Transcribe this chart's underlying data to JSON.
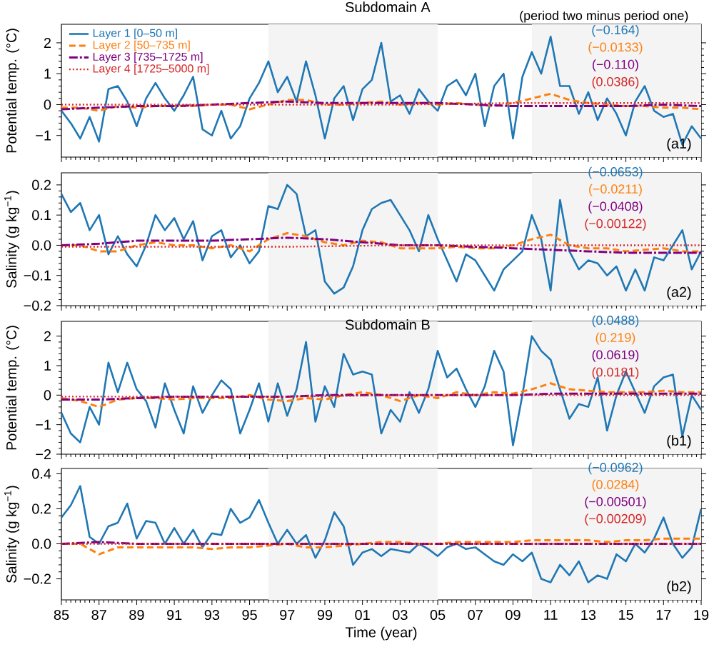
{
  "chart_data": [
    {
      "type": "line",
      "title": "Subdomain A",
      "ylabel": "Potential temp. (°C)",
      "legend": "top left",
      "tick_labels": "y",
      "xlim": [
        1985,
        2019
      ],
      "ylim": [
        -1.7,
        2.6
      ],
      "xticks": [
        {
          "value": 1985,
          "label": null
        },
        {
          "value": 1987,
          "label": null
        },
        {
          "value": 1989,
          "label": null
        },
        {
          "value": 1991,
          "label": null
        },
        {
          "value": 1993,
          "label": null
        },
        {
          "value": 1995,
          "label": null
        },
        {
          "value": 1997,
          "label": null
        },
        {
          "value": 1999,
          "label": null
        },
        {
          "value": 2001,
          "label": null
        },
        {
          "value": 2003,
          "label": null
        },
        {
          "value": 2005,
          "label": null
        },
        {
          "value": 2007,
          "label": null
        },
        {
          "value": 2009,
          "label": null
        },
        {
          "value": 2011,
          "label": null
        },
        {
          "value": 2013,
          "label": null
        },
        {
          "value": 2015,
          "label": null
        },
        {
          "value": 2017,
          "label": null
        },
        {
          "value": 2019,
          "label": null
        }
      ],
      "yticks": [
        {
          "value": -1,
          "label": "−1"
        },
        0,
        1,
        2
      ],
      "bands": [
        {
          "axis": "x",
          "from": 1996,
          "to": 2005,
          "color": "#f4f4f4"
        },
        {
          "axis": "x",
          "from": 2010,
          "to": 2019,
          "color": "#f4f4f4"
        }
      ],
      "annotations": [
        "(a1)",
        "(−0.164)",
        "(−0.0133)",
        "(−0.110)",
        "(0.0386)",
        "(period two minus period one)"
      ],
      "x": [
        1985,
        1985.5,
        1986,
        1986.5,
        1987,
        1987.5,
        1988,
        1988.5,
        1989,
        1989.5,
        1990,
        1990.5,
        1991,
        1991.5,
        1992,
        1992.5,
        1993,
        1993.5,
        1994,
        1994.5,
        1995,
        1995.5,
        1996,
        1996.5,
        1997,
        1997.5,
        1998,
        1998.5,
        1999,
        1999.5,
        2000,
        2000.5,
        2001,
        2001.5,
        2002,
        2002.5,
        2003,
        2003.5,
        2004,
        2004.5,
        2005,
        2005.5,
        2006,
        2006.5,
        2007,
        2007.5,
        2008,
        2008.5,
        2009,
        2009.5,
        2010,
        2010.5,
        2011,
        2011.5,
        2012,
        2012.5,
        2013,
        2013.5,
        2014,
        2014.5,
        2015,
        2015.5,
        2016,
        2016.5,
        2017,
        2017.5,
        2018,
        2018.5,
        2019
      ],
      "series": [
        {
          "name": "Layer 1 [0–50 m]",
          "color": "#1f77b4",
          "line_style": "solid",
          "values": [
            -0.2,
            -0.6,
            -1.1,
            -0.4,
            -1.2,
            0.5,
            0.6,
            0.1,
            -0.7,
            0.2,
            0.7,
            0.2,
            -0.2,
            0.3,
            0.9,
            -0.8,
            -1.0,
            -0.2,
            -1.1,
            -0.7,
            0.2,
            0.7,
            1.4,
            0.4,
            0.9,
            0.1,
            1.4,
            0.3,
            -1.1,
            0.2,
            0.6,
            -0.5,
            0.5,
            0.8,
            2.0,
            0.1,
            0.3,
            -0.3,
            0.5,
            0.1,
            -0.2,
            0.6,
            0.8,
            0.3,
            1.0,
            -0.7,
            0.6,
            1.0,
            -1.1,
            0.9,
            1.7,
            1.0,
            2.2,
            0.6,
            0.6,
            -0.3,
            0.4,
            -0.5,
            0.2,
            -0.3,
            -1.0,
            0.1,
            0.6,
            -0.2,
            -0.4,
            -0.3,
            -1.3,
            -0.7,
            -1.1
          ]
        },
        {
          "name": "Layer 2 [50–735 m]",
          "color": "#ff7f0e",
          "line_style": "dashed",
          "x": [
            1985,
            1986,
            1987,
            1988,
            1989,
            1990,
            1991,
            1992,
            1993,
            1994,
            1995,
            1996,
            1997,
            1998,
            1999,
            2000,
            2001,
            2002,
            2003,
            2004,
            2005,
            2006,
            2007,
            2008,
            2009,
            2010,
            2011,
            2012,
            2013,
            2014,
            2015,
            2016,
            2017,
            2018,
            2019
          ],
          "values": [
            -0.1,
            -0.1,
            -0.2,
            -0.05,
            -0.1,
            -0.05,
            -0.05,
            -0.05,
            0.0,
            0.0,
            -0.15,
            0.0,
            0.15,
            0.15,
            0.0,
            0.0,
            0.05,
            0.1,
            0.0,
            0.05,
            0.0,
            0.05,
            0.0,
            -0.05,
            0.05,
            0.2,
            0.35,
            0.15,
            0.05,
            0.0,
            -0.05,
            -0.05,
            -0.1,
            -0.1,
            -0.15
          ]
        },
        {
          "name": "Layer 3 [735–1725 m]",
          "color": "#800080",
          "line_style": "dashdot",
          "x": [
            1985,
            1987,
            1989,
            1991,
            1993,
            1995,
            1997,
            1999,
            2001,
            2003,
            2005,
            2007,
            2009,
            2011,
            2013,
            2015,
            2017,
            2019
          ],
          "values": [
            -0.15,
            -0.1,
            -0.05,
            -0.05,
            0.0,
            0.05,
            0.1,
            0.05,
            0.05,
            0.05,
            0.05,
            0.0,
            -0.05,
            -0.05,
            -0.05,
            -0.05,
            0.0,
            -0.05
          ]
        },
        {
          "name": "Layer 4 [1725–5000 m]",
          "color": "#d62728",
          "line_style": "dotted",
          "x": [
            1985,
            1991,
            1997,
            2003,
            2009,
            2015,
            2019
          ],
          "values": [
            0.0,
            0.0,
            0.0,
            0.0,
            0.05,
            0.05,
            0.05
          ]
        }
      ]
    },
    {
      "type": "line",
      "ylabel": "Salinity (g kg$^{−1}$)",
      "tick_labels": "y",
      "xlim": [
        1985,
        2019
      ],
      "ylim": [
        -0.2,
        0.24
      ],
      "xticks": [
        {
          "value": 1985,
          "label": null
        },
        {
          "value": 1987,
          "label": null
        },
        {
          "value": 1989,
          "label": null
        },
        {
          "value": 1991,
          "label": null
        },
        {
          "value": 1993,
          "label": null
        },
        {
          "value": 1995,
          "label": null
        },
        {
          "value": 1997,
          "label": null
        },
        {
          "value": 1999,
          "label": null
        },
        {
          "value": 2001,
          "label": null
        },
        {
          "value": 2003,
          "label": null
        },
        {
          "value": 2005,
          "label": null
        },
        {
          "value": 2007,
          "label": null
        },
        {
          "value": 2009,
          "label": null
        },
        {
          "value": 2011,
          "label": null
        },
        {
          "value": 2013,
          "label": null
        },
        {
          "value": 2015,
          "label": null
        },
        {
          "value": 2017,
          "label": null
        },
        {
          "value": 2019,
          "label": null
        }
      ],
      "yticks": [
        {
          "value": -0.2,
          "label": "−0.2"
        },
        {
          "value": -0.1,
          "label": "−0.1"
        },
        {
          "value": 0,
          "label": "0.0"
        },
        0.1,
        0.2
      ],
      "bands": [
        {
          "axis": "x",
          "from": 1996,
          "to": 2005,
          "color": "#f4f4f4"
        },
        {
          "axis": "x",
          "from": 2010,
          "to": 2019,
          "color": "#f4f4f4"
        }
      ],
      "annotations": [
        "(a2)",
        "(−0.0653)",
        "(−0.0211)",
        "(−0.0408)",
        "(−0.00122)"
      ],
      "x": [
        1985,
        1985.5,
        1986,
        1986.5,
        1987,
        1987.5,
        1988,
        1988.5,
        1989,
        1989.5,
        1990,
        1990.5,
        1991,
        1991.5,
        1992,
        1992.5,
        1993,
        1993.5,
        1994,
        1994.5,
        1995,
        1995.5,
        1996,
        1996.5,
        1997,
        1997.5,
        1998,
        1998.5,
        1999,
        1999.5,
        2000,
        2000.5,
        2001,
        2001.5,
        2002,
        2002.5,
        2003,
        2003.5,
        2004,
        2004.5,
        2005,
        2005.5,
        2006,
        2006.5,
        2007,
        2007.5,
        2008,
        2008.5,
        2009,
        2009.5,
        2010,
        2010.5,
        2011,
        2011.5,
        2012,
        2012.5,
        2013,
        2013.5,
        2014,
        2014.5,
        2015,
        2015.5,
        2016,
        2016.5,
        2017,
        2017.5,
        2018,
        2018.5,
        2019
      ],
      "series": [
        {
          "color": "#1f77b4",
          "line_style": "solid",
          "values": [
            0.17,
            0.11,
            0.14,
            0.05,
            0.1,
            -0.03,
            0.03,
            -0.03,
            -0.07,
            0.0,
            0.1,
            0.05,
            0.09,
            0.02,
            0.08,
            -0.05,
            0.03,
            0.05,
            -0.04,
            0.0,
            -0.06,
            -0.02,
            0.13,
            0.12,
            0.2,
            0.17,
            0.03,
            0.05,
            -0.12,
            -0.16,
            -0.14,
            -0.07,
            0.05,
            0.12,
            0.14,
            0.15,
            0.1,
            0.05,
            -0.02,
            0.1,
            0.02,
            -0.05,
            -0.12,
            -0.03,
            -0.05,
            -0.1,
            -0.15,
            -0.08,
            -0.05,
            -0.02,
            0.1,
            0.02,
            -0.15,
            0.15,
            -0.02,
            -0.08,
            -0.05,
            -0.06,
            -0.1,
            -0.07,
            -0.15,
            -0.08,
            -0.15,
            -0.04,
            -0.05,
            0.0,
            0.05,
            -0.08,
            -0.02
          ]
        },
        {
          "color": "#ff7f0e",
          "line_style": "dashed",
          "x": [
            1985,
            1986,
            1987,
            1988,
            1989,
            1990,
            1991,
            1992,
            1993,
            1994,
            1995,
            1996,
            1997,
            1998,
            1999,
            2000,
            2001,
            2002,
            2003,
            2004,
            2005,
            2006,
            2007,
            2008,
            2009,
            2010,
            2011,
            2012,
            2013,
            2014,
            2015,
            2016,
            2017,
            2018,
            2019
          ],
          "values": [
            0.0,
            0.0,
            -0.02,
            -0.02,
            0.0,
            0.01,
            0.0,
            0.0,
            -0.01,
            0.0,
            -0.02,
            0.02,
            0.04,
            0.03,
            0.01,
            0.0,
            0.015,
            0.01,
            -0.01,
            -0.01,
            -0.01,
            -0.005,
            -0.01,
            -0.01,
            0.0,
            0.02,
            0.035,
            0.0,
            -0.01,
            -0.01,
            -0.02,
            -0.015,
            -0.01,
            -0.02,
            -0.02
          ]
        },
        {
          "color": "#800080",
          "line_style": "dashdot",
          "x": [
            1985,
            1987,
            1989,
            1991,
            1993,
            1995,
            1997,
            1999,
            2001,
            2003,
            2005,
            2007,
            2009,
            2011,
            2013,
            2015,
            2017,
            2019
          ],
          "values": [
            0.0,
            0.005,
            0.015,
            0.015,
            0.015,
            0.02,
            0.025,
            0.02,
            0.01,
            0.0,
            0.0,
            -0.005,
            -0.01,
            -0.015,
            -0.02,
            -0.025,
            -0.025,
            -0.025
          ]
        },
        {
          "color": "#d62728",
          "line_style": "dotted",
          "x": [
            1985,
            1991,
            1997,
            2003,
            2009,
            2015,
            2019
          ],
          "values": [
            -0.005,
            -0.005,
            -0.005,
            0.0,
            0.0,
            0.0,
            0.0
          ]
        }
      ]
    },
    {
      "type": "line",
      "title": "Subdomain B",
      "ylabel": "Potential temp. (°C)",
      "tick_labels": "y",
      "xlim": [
        1985,
        2019
      ],
      "ylim": [
        -2,
        2.5
      ],
      "xticks": [
        {
          "value": 1985,
          "label": null
        },
        {
          "value": 1987,
          "label": null
        },
        {
          "value": 1989,
          "label": null
        },
        {
          "value": 1991,
          "label": null
        },
        {
          "value": 1993,
          "label": null
        },
        {
          "value": 1995,
          "label": null
        },
        {
          "value": 1997,
          "label": null
        },
        {
          "value": 1999,
          "label": null
        },
        {
          "value": 2001,
          "label": null
        },
        {
          "value": 2003,
          "label": null
        },
        {
          "value": 2005,
          "label": null
        },
        {
          "value": 2007,
          "label": null
        },
        {
          "value": 2009,
          "label": null
        },
        {
          "value": 2011,
          "label": null
        },
        {
          "value": 2013,
          "label": null
        },
        {
          "value": 2015,
          "label": null
        },
        {
          "value": 2017,
          "label": null
        },
        {
          "value": 2019,
          "label": null
        }
      ],
      "yticks": [
        {
          "value": -2,
          "label": "−2"
        },
        {
          "value": -1,
          "label": "−1"
        },
        0,
        1,
        2
      ],
      "bands": [
        {
          "axis": "x",
          "from": 1996,
          "to": 2005,
          "color": "#f4f4f4"
        },
        {
          "axis": "x",
          "from": 2010,
          "to": 2019,
          "color": "#f4f4f4"
        }
      ],
      "annotations": [
        "(b1)",
        "(0.0488)",
        "(0.219)",
        "(0.0619)",
        "(0.0181)"
      ],
      "x": [
        1985,
        1985.5,
        1986,
        1986.5,
        1987,
        1987.5,
        1988,
        1988.5,
        1989,
        1989.5,
        1990,
        1990.5,
        1991,
        1991.5,
        1992,
        1992.5,
        1993,
        1993.5,
        1994,
        1994.5,
        1995,
        1995.5,
        1996,
        1996.5,
        1997,
        1997.5,
        1998,
        1998.5,
        1999,
        1999.5,
        2000,
        2000.5,
        2001,
        2001.5,
        2002,
        2002.5,
        2003,
        2003.5,
        2004,
        2004.5,
        2005,
        2005.5,
        2006,
        2006.5,
        2007,
        2007.5,
        2008,
        2008.5,
        2009,
        2009.5,
        2010,
        2010.5,
        2011,
        2011.5,
        2012,
        2012.5,
        2013,
        2013.5,
        2014,
        2014.5,
        2015,
        2015.5,
        2016,
        2016.5,
        2017,
        2017.5,
        2018,
        2018.5,
        2019
      ],
      "series": [
        {
          "color": "#1f77b4",
          "line_style": "solid",
          "values": [
            -0.6,
            -1.3,
            -1.6,
            -0.4,
            -1.0,
            1.1,
            0.1,
            1.1,
            0.2,
            -0.2,
            -1.1,
            0.4,
            -0.5,
            -1.3,
            0.3,
            -0.6,
            0.0,
            0.5,
            0.2,
            -1.3,
            -0.5,
            0.4,
            -0.9,
            0.4,
            -0.7,
            0.2,
            1.8,
            -0.9,
            0.3,
            -0.4,
            1.4,
            0.7,
            0.8,
            0.7,
            -1.3,
            -0.5,
            -0.9,
            0.1,
            -0.6,
            0.2,
            1.5,
            0.6,
            0.9,
            0.2,
            -0.4,
            0.3,
            1.5,
            0.8,
            -1.7,
            0.0,
            2.0,
            1.5,
            1.2,
            0.2,
            -0.8,
            -0.3,
            -0.4,
            0.6,
            -1.2,
            0.0,
            0.8,
            0.1,
            -0.6,
            0.3,
            0.6,
            0.7,
            -1.4,
            0.0,
            -0.5
          ]
        },
        {
          "color": "#ff7f0e",
          "line_style": "dashed",
          "x": [
            1985,
            1986,
            1987,
            1988,
            1989,
            1990,
            1991,
            1992,
            1993,
            1994,
            1995,
            1996,
            1997,
            1998,
            1999,
            2000,
            2001,
            2002,
            2003,
            2004,
            2005,
            2006,
            2007,
            2008,
            2009,
            2010,
            2011,
            2012,
            2013,
            2014,
            2015,
            2016,
            2017,
            2018,
            2019
          ],
          "values": [
            -0.1,
            -0.2,
            -0.4,
            -0.15,
            -0.1,
            -0.1,
            -0.15,
            -0.1,
            -0.1,
            -0.1,
            0.0,
            -0.15,
            -0.2,
            -0.1,
            -0.15,
            0.0,
            0.1,
            0.0,
            -0.2,
            0.0,
            -0.1,
            0.1,
            0.0,
            0.1,
            0.05,
            0.2,
            0.4,
            0.2,
            0.15,
            0.1,
            0.1,
            0.1,
            0.15,
            0.1,
            0.1
          ]
        },
        {
          "color": "#800080",
          "line_style": "dashdot",
          "x": [
            1985,
            1987,
            1989,
            1991,
            1993,
            1995,
            1997,
            1999,
            2001,
            2003,
            2005,
            2007,
            2009,
            2011,
            2013,
            2015,
            2017,
            2019
          ],
          "values": [
            -0.15,
            -0.15,
            -0.1,
            -0.05,
            -0.05,
            -0.05,
            -0.05,
            0.0,
            0.0,
            0.0,
            0.0,
            0.0,
            0.0,
            0.05,
            0.05,
            0.05,
            0.05,
            0.05
          ]
        },
        {
          "color": "#d62728",
          "line_style": "dotted",
          "x": [
            1985,
            1991,
            1997,
            2003,
            2009,
            2015,
            2019
          ],
          "values": [
            -0.05,
            -0.05,
            -0.05,
            0.0,
            0.0,
            0.0,
            0.0
          ]
        }
      ]
    },
    {
      "type": "line",
      "ylabel": "Salinity (g kg$^{−1}$)",
      "xlabel": "Time (year)",
      "xlim": [
        1985,
        2019
      ],
      "ylim": [
        -0.32,
        0.43
      ],
      "xticks": [
        {
          "value": 1985,
          "label": "85"
        },
        {
          "value": 1987,
          "label": "87"
        },
        {
          "value": 1989,
          "label": "89"
        },
        {
          "value": 1991,
          "label": "91"
        },
        {
          "value": 1993,
          "label": "93"
        },
        {
          "value": 1995,
          "label": "95"
        },
        {
          "value": 1997,
          "label": "97"
        },
        {
          "value": 1999,
          "label": "99"
        },
        {
          "value": 2001,
          "label": "01"
        },
        {
          "value": 2003,
          "label": "03"
        },
        {
          "value": 2005,
          "label": "05"
        },
        {
          "value": 2007,
          "label": "07"
        },
        {
          "value": 2009,
          "label": "09"
        },
        {
          "value": 2011,
          "label": "11"
        },
        {
          "value": 2013,
          "label": "13"
        },
        {
          "value": 2015,
          "label": "15"
        },
        {
          "value": 2017,
          "label": "17"
        },
        {
          "value": 2019,
          "label": "19"
        }
      ],
      "yticks": [
        {
          "value": -0.2,
          "label": "−0.2"
        },
        {
          "value": 0,
          "label": "0.0"
        },
        0.2,
        0.4
      ],
      "bands": [
        {
          "axis": "x",
          "from": 1996,
          "to": 2005,
          "color": "#f4f4f4"
        },
        {
          "axis": "x",
          "from": 2010,
          "to": 2019,
          "color": "#f4f4f4"
        }
      ],
      "annotations": [
        "(b2)",
        "(−0.0962)",
        "(0.0284)",
        "(−0.00501)",
        "(−0.00209)"
      ],
      "x": [
        1985,
        1985.5,
        1986,
        1986.5,
        1987,
        1987.5,
        1988,
        1988.5,
        1989,
        1989.5,
        1990,
        1990.5,
        1991,
        1991.5,
        1992,
        1992.5,
        1993,
        1993.5,
        1994,
        1994.5,
        1995,
        1995.5,
        1996,
        1996.5,
        1997,
        1997.5,
        1998,
        1998.5,
        1999,
        1999.5,
        2000,
        2000.5,
        2001,
        2001.5,
        2002,
        2002.5,
        2003,
        2003.5,
        2004,
        2004.5,
        2005,
        2005.5,
        2006,
        2006.5,
        2007,
        2007.5,
        2008,
        2008.5,
        2009,
        2009.5,
        2010,
        2010.5,
        2011,
        2011.5,
        2012,
        2012.5,
        2013,
        2013.5,
        2014,
        2014.5,
        2015,
        2015.5,
        2016,
        2016.5,
        2017,
        2017.5,
        2018,
        2018.5,
        2019
      ],
      "series": [
        {
          "color": "#1f77b4",
          "line_style": "solid",
          "values": [
            0.15,
            0.22,
            0.33,
            0.04,
            0.0,
            0.1,
            0.12,
            0.23,
            0.03,
            0.13,
            0.12,
            0.0,
            0.09,
            0.0,
            0.08,
            -0.02,
            0.06,
            0.05,
            0.2,
            0.12,
            0.15,
            0.25,
            0.12,
            0.0,
            0.08,
            0.0,
            0.05,
            -0.08,
            0.02,
            0.18,
            0.1,
            -0.12,
            -0.05,
            -0.03,
            -0.07,
            -0.03,
            -0.04,
            -0.05,
            0.0,
            -0.03,
            -0.07,
            -0.02,
            0.0,
            -0.03,
            -0.02,
            -0.06,
            -0.1,
            -0.12,
            -0.06,
            -0.1,
            -0.05,
            -0.2,
            -0.22,
            -0.12,
            -0.18,
            -0.1,
            -0.22,
            -0.18,
            -0.2,
            -0.06,
            -0.1,
            0.0,
            -0.05,
            0.03,
            0.15,
            0.0,
            -0.08,
            -0.02,
            0.2
          ]
        },
        {
          "color": "#ff7f0e",
          "line_style": "dashed",
          "x": [
            1985,
            1986,
            1987,
            1988,
            1989,
            1990,
            1991,
            1992,
            1993,
            1994,
            1995,
            1996,
            1997,
            1998,
            1999,
            2000,
            2001,
            2002,
            2003,
            2004,
            2005,
            2006,
            2007,
            2008,
            2009,
            2010,
            2011,
            2012,
            2013,
            2014,
            2015,
            2016,
            2017,
            2018,
            2019
          ],
          "values": [
            0.0,
            0.0,
            -0.06,
            -0.02,
            -0.02,
            -0.02,
            -0.02,
            -0.02,
            -0.03,
            -0.02,
            -0.02,
            -0.01,
            0.0,
            -0.02,
            -0.02,
            -0.01,
            0.0,
            0.01,
            0.01,
            0.0,
            0.0,
            0.01,
            0.01,
            0.01,
            0.01,
            0.02,
            0.02,
            0.02,
            0.02,
            0.01,
            0.02,
            0.02,
            0.03,
            0.03,
            0.03
          ]
        },
        {
          "color": "#800080",
          "line_style": "dashdot",
          "x": [
            1985,
            1987,
            1989,
            1991,
            1993,
            1995,
            1997,
            1999,
            2001,
            2003,
            2005,
            2007,
            2009,
            2011,
            2013,
            2015,
            2017,
            2019
          ],
          "values": [
            0.0,
            0.01,
            0.0,
            0.0,
            0.0,
            0.0,
            0.0,
            0.0,
            0.0,
            0.0,
            0.0,
            0.0,
            0.0,
            0.0,
            0.0,
            0.0,
            0.0,
            0.0
          ]
        },
        {
          "color": "#d62728",
          "line_style": "dotted",
          "x": [
            1985,
            1991,
            1997,
            2003,
            2009,
            2015,
            2019
          ],
          "values": [
            0.0,
            0.0,
            0.0,
            0.0,
            0.0,
            0.0,
            0.0
          ]
        }
      ]
    }
  ]
}
